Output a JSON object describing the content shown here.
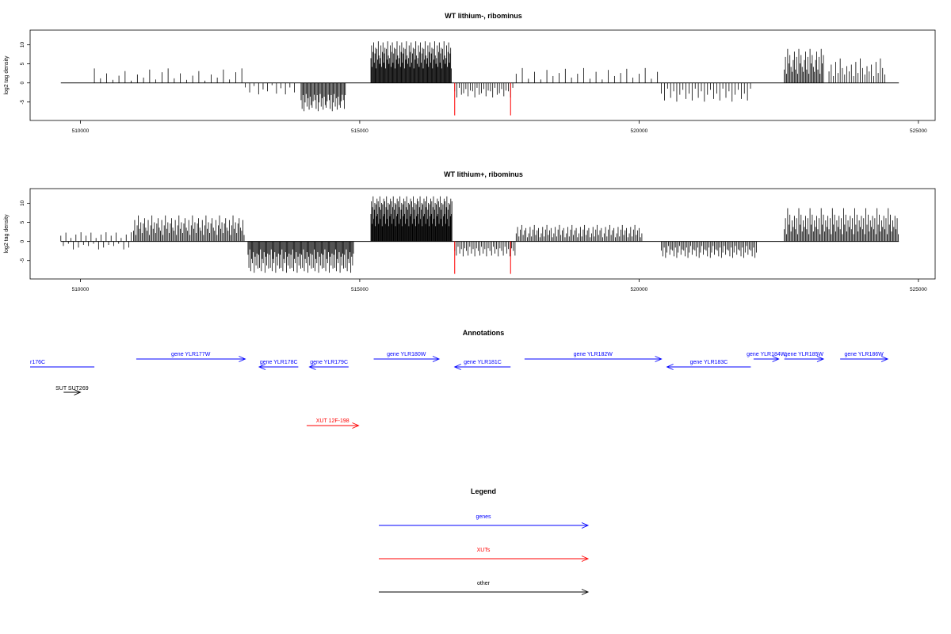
{
  "chart_data": [
    {
      "type": "bar",
      "title": "WT lithium-, ribominus",
      "ylabel": "log2 tag density",
      "xlabel": "",
      "xlim": [
        509100,
        525300
      ],
      "ylim": [
        -9,
        13
      ],
      "x_ticks": [
        510000,
        515000,
        520000,
        525000
      ],
      "x_tick_labels": [
        "510000",
        "515000",
        "520000",
        "525000"
      ],
      "y_ticks": [
        -5,
        0,
        5,
        10
      ],
      "y_tick_labels": [
        "-5",
        "0",
        "5",
        "10"
      ],
      "baseline": [
        509650,
        524650
      ],
      "bar_color": "#000000",
      "highlight_color": "#ff0000",
      "highlights": [
        {
          "x": 516700,
          "value": -8.5
        },
        {
          "x": 517700,
          "value": -8.5
        }
      ],
      "regions": [
        {
          "start": 510250,
          "end": 512900,
          "min": 1,
          "max": 4,
          "step": 110,
          "pattern": [
            3.8,
            1.2,
            2.5,
            0.8,
            1.9,
            3.1,
            0.6,
            2.2,
            1.4,
            3.5,
            0.9,
            2.8
          ]
        },
        {
          "start": 512950,
          "end": 513900,
          "min": -3,
          "max": -0.5,
          "step": 80,
          "pattern": [
            -1.2,
            -2.5,
            -0.8,
            -3.0,
            -1.7,
            -2.2,
            -0.6,
            -2.8,
            -1.4,
            -3.0
          ]
        },
        {
          "start": 513950,
          "end": 514750,
          "min": -7.5,
          "max": -2.5,
          "step": 18,
          "pattern": [
            -4.5,
            -6.8,
            -3.2,
            -7.4,
            -5.1,
            -2.9,
            -6.2,
            -4.0,
            -7.0,
            -3.6,
            -5.8,
            -6.5,
            -4.8,
            -3.1
          ]
        },
        {
          "start": 515200,
          "end": 516650,
          "min": 3,
          "max": 11,
          "step": 12,
          "pattern": [
            6.5,
            9.8,
            4.2,
            8.1,
            10.6,
            5.3,
            7.7,
            9.2,
            3.8,
            8.9,
            6.1,
            10.9,
            7.2,
            5.0
          ]
        },
        {
          "start": 516700,
          "end": 517750,
          "min": -4,
          "max": -1,
          "step": 40,
          "pattern": [
            -2.2,
            -3.8,
            -1.3,
            -3.1,
            -2.7,
            -1.6,
            -3.5,
            -2.0
          ]
        },
        {
          "start": 517800,
          "end": 520350,
          "min": 1,
          "max": 4,
          "step": 110,
          "pattern": [
            2.4,
            3.9,
            1.1,
            2.9,
            0.9,
            3.4,
            1.8,
            2.6,
            3.7,
            1.4
          ]
        },
        {
          "start": 520400,
          "end": 522000,
          "min": -5,
          "max": -1,
          "step": 55,
          "pattern": [
            -2.8,
            -4.6,
            -1.5,
            -3.9,
            -2.2,
            -4.9,
            -3.1,
            -1.8,
            -4.2
          ]
        },
        {
          "start": 522600,
          "end": 523300,
          "min": 2,
          "max": 9,
          "step": 20,
          "pattern": [
            3.5,
            6.8,
            2.4,
            8.9,
            5.1,
            7.3,
            4.2,
            2.9,
            6.0,
            8.2
          ]
        },
        {
          "start": 523400,
          "end": 524400,
          "min": 1,
          "max": 6.5,
          "step": 40,
          "pattern": [
            3.0,
            4.8,
            1.8,
            5.5,
            2.6,
            6.4,
            3.9,
            2.2,
            4.4
          ]
        }
      ]
    },
    {
      "type": "bar",
      "title": "WT lithium+, ribominus",
      "ylabel": "log2 tag density",
      "xlabel": "",
      "xlim": [
        509100,
        525300
      ],
      "ylim": [
        -9,
        13
      ],
      "x_ticks": [
        510000,
        515000,
        520000,
        525000
      ],
      "x_tick_labels": [
        "510000",
        "515000",
        "520000",
        "525000"
      ],
      "y_ticks": [
        -5,
        0,
        5,
        10
      ],
      "y_tick_labels": [
        "-5",
        "0",
        "5",
        "10"
      ],
      "baseline": [
        509650,
        524650
      ],
      "bar_color": "#000000",
      "highlight_color": "#ff0000",
      "highlights": [
        {
          "x": 516700,
          "value": -8.5
        },
        {
          "x": 517700,
          "value": -8.5
        }
      ],
      "regions": [
        {
          "start": 509650,
          "end": 510950,
          "min": -2.5,
          "max": 2.5,
          "step": 45,
          "pattern": [
            1.5,
            -1.2,
            2.3,
            -0.6,
            0.9,
            -2.1,
            1.8,
            -1.6,
            2.4,
            -0.9
          ]
        },
        {
          "start": 510950,
          "end": 512950,
          "min": 1,
          "max": 7,
          "step": 22,
          "pattern": [
            2.8,
            5.6,
            1.7,
            4.2,
            6.8,
            3.3,
            5.0,
            2.2,
            4.7,
            6.1,
            3.6
          ]
        },
        {
          "start": 513000,
          "end": 514900,
          "min": -8.5,
          "max": -1,
          "step": 16,
          "pattern": [
            -3.5,
            -6.9,
            -2.1,
            -7.8,
            -4.6,
            -5.7,
            -2.8,
            -8.2,
            -4.0,
            -6.3,
            -3.2,
            -7.1
          ]
        },
        {
          "start": 515200,
          "end": 516650,
          "min": 3,
          "max": 12,
          "step": 10,
          "pattern": [
            7.2,
            10.5,
            4.6,
            9.0,
            11.8,
            5.9,
            8.3,
            10.1,
            4.0,
            9.7,
            6.6,
            11.2
          ]
        },
        {
          "start": 516700,
          "end": 517800,
          "min": -4,
          "max": -1,
          "step": 30,
          "pattern": [
            -2.5,
            -3.7,
            -1.4,
            -3.2,
            -2.0,
            -3.9,
            -1.8
          ]
        },
        {
          "start": 517800,
          "end": 520050,
          "min": 1,
          "max": 4.5,
          "step": 25,
          "pattern": [
            2.1,
            3.8,
            1.3,
            3.1,
            4.3,
            1.7,
            2.9,
            3.5,
            1.1
          ]
        },
        {
          "start": 520400,
          "end": 522100,
          "min": -4.5,
          "max": -1,
          "step": 25,
          "pattern": [
            -2.4,
            -3.9,
            -1.6,
            -4.3,
            -2.9,
            -1.2,
            -3.5,
            -2.1
          ]
        },
        {
          "start": 522600,
          "end": 524650,
          "min": 1,
          "max": 9,
          "step": 20,
          "pattern": [
            3.2,
            6.1,
            1.9,
            8.7,
            4.4,
            7.0,
            2.6,
            5.5,
            3.8,
            6.7
          ]
        }
      ]
    }
  ],
  "annotations": {
    "title": "Annotations",
    "features": [
      {
        "label": "r176C",
        "kind": "gene",
        "start": 509100,
        "end": 510250,
        "strand": "-",
        "track": 0,
        "label_at": 509100
      },
      {
        "label": "gene YLR177W",
        "kind": "gene",
        "start": 511000,
        "end": 512950,
        "strand": "+",
        "track": 1
      },
      {
        "label": "gene YLR178C",
        "kind": "gene",
        "start": 513200,
        "end": 513900,
        "strand": "-",
        "track": 0
      },
      {
        "label": "gene YLR179C",
        "kind": "gene",
        "start": 514100,
        "end": 514800,
        "strand": "-",
        "track": 0
      },
      {
        "label": "gene YLR180W",
        "kind": "gene",
        "start": 515250,
        "end": 516420,
        "strand": "+",
        "track": 1
      },
      {
        "label": "gene YLR181C",
        "kind": "gene",
        "start": 516700,
        "end": 517700,
        "strand": "-",
        "track": 0
      },
      {
        "label": "gene YLR182W",
        "kind": "gene",
        "start": 517950,
        "end": 520400,
        "strand": "+",
        "track": 1
      },
      {
        "label": "gene YLR183C",
        "kind": "gene",
        "start": 520500,
        "end": 522000,
        "strand": "-",
        "track": 0
      },
      {
        "label": "gene YLR184W",
        "kind": "gene",
        "start": 522050,
        "end": 522500,
        "strand": "+",
        "track": 1
      },
      {
        "label": "gene YLR185W",
        "kind": "gene",
        "start": 522600,
        "end": 523300,
        "strand": "+",
        "track": 1
      },
      {
        "label": "gene YLR186W",
        "kind": "gene",
        "start": 523600,
        "end": 524450,
        "strand": "+",
        "track": 1
      },
      {
        "label": "SUT SUT269",
        "kind": "other",
        "start": 509700,
        "end": 510000,
        "strand": "+",
        "track": 2
      },
      {
        "label": "XUT 12F-198",
        "kind": "xut",
        "start": 514050,
        "end": 514980,
        "strand": "+",
        "track": 3
      }
    ]
  },
  "legend": {
    "title": "Legend",
    "items": [
      {
        "label": "genes",
        "color": "#0000ff"
      },
      {
        "label": "XUTs",
        "color": "#ff0000"
      },
      {
        "label": "other",
        "color": "#000000"
      }
    ]
  }
}
